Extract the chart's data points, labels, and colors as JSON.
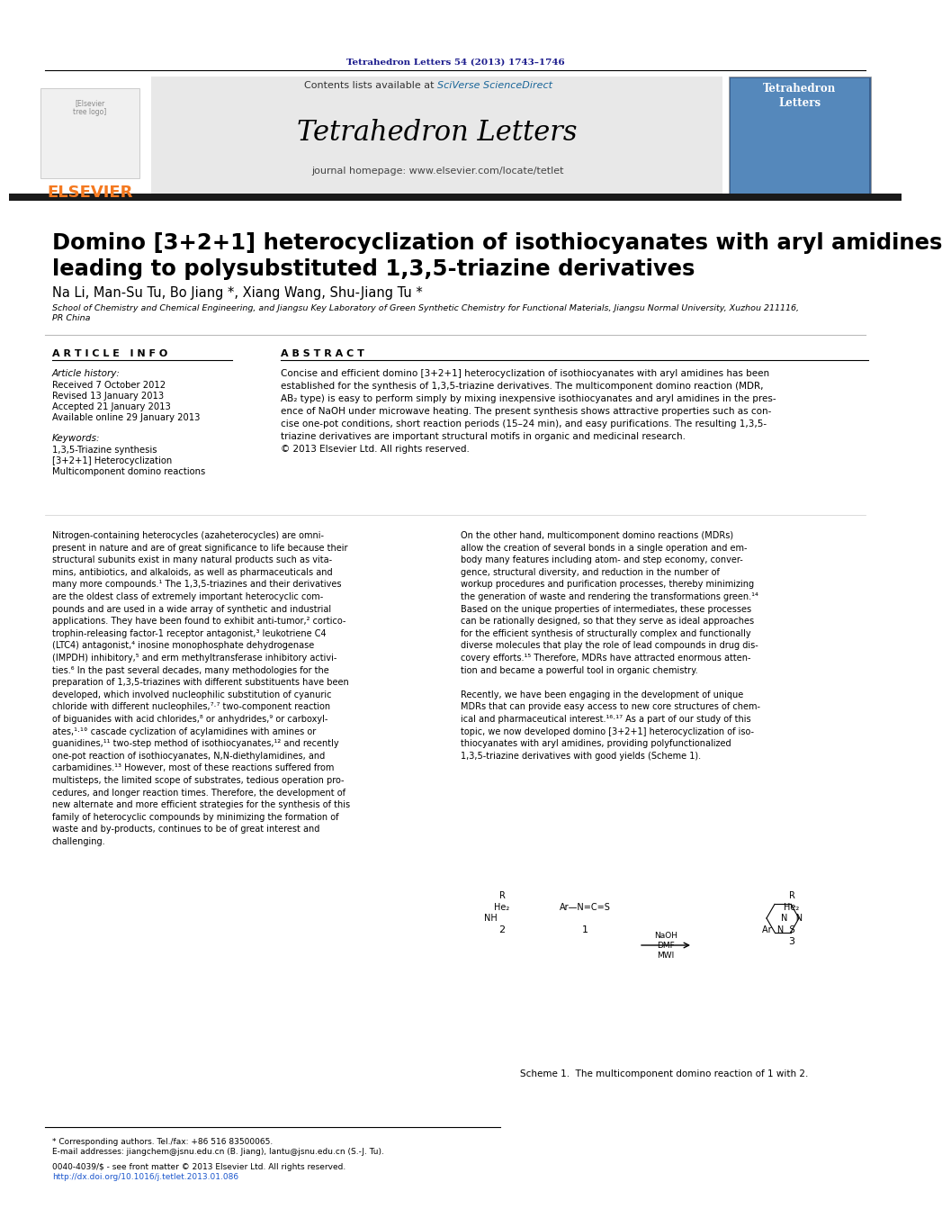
{
  "page_bg": "#ffffff",
  "header_journal_citation": "Tetrahedron Letters 54 (2013) 1743–1746",
  "header_citation_color": "#1a1a8c",
  "journal_name": "Tetrahedron Letters",
  "journal_homepage": "journal homepage: www.elsevier.com/locate/tetlet",
  "contents_line": "Contents lists available at ",
  "sciverse_text": "SciVerse ScienceDirect",
  "elsevier_color": "#f47920",
  "elsevier_text": "ELSEVIER",
  "header_bg": "#e8e8e8",
  "dark_bar_color": "#1a1a1a",
  "title": "Domino [3+2+1] heterocyclization of isothiocyanates with aryl amidines\nleading to polysubstituted 1,3,5-triazine derivatives",
  "authors": "Na Li, Man-Su Tu, Bo Jiang *, Xiang Wang, Shu-Jiang Tu *",
  "affiliation": "School of Chemistry and Chemical Engineering, and Jiangsu Key Laboratory of Green Synthetic Chemistry for Functional Materials, Jiangsu Normal University, Xuzhou 211116,\nPR China",
  "article_info_label": "A R T I C L E   I N F O",
  "abstract_label": "A B S T R A C T",
  "article_history_label": "Article history:",
  "received_label": "Received 7 October 2012",
  "revised_label": "Revised 13 January 2013",
  "accepted_label": "Accepted 21 January 2013",
  "online_label": "Available online 29 January 2013",
  "keywords_label": "Keywords:",
  "kw1": "1,3,5-Triazine synthesis",
  "kw2": "[3+2+1] Heterocyclization",
  "kw3": "Multicomponent domino reactions",
  "abstract_text": "Concise and efficient domino [3+2+1] heterocyclization of isothiocyanates with aryl amidines has been\nestablished for the synthesis of 1,3,5-triazine derivatives. The multicomponent domino reaction (MDR,\nAB₂ type) is easy to perform simply by mixing inexpensive isothiocyanates and aryl amidines in the pres-\nence of NaOH under microwave heating. The present synthesis shows attractive properties such as con-\ncise one-pot conditions, short reaction periods (15–24 min), and easy purifications. The resulting 1,3,5-\ntriazine derivatives are important structural motifs in organic and medicinal research.\n© 2013 Elsevier Ltd. All rights reserved.",
  "body_left_col": "Nitrogen-containing heterocycles (azaheterocycles) are omni-\npresent in nature and are of great significance to life because their\nstructural subunits exist in many natural products such as vita-\nmins, antibiotics, and alkaloids, as well as pharmaceuticals and\nmany more compounds.¹ The 1,3,5-triazines and their derivatives\nare the oldest class of extremely important heterocyclic com-\npounds and are used in a wide array of synthetic and industrial\napplications. They have been found to exhibit anti-tumor,² cortico-\ntrophin-releasing factor-1 receptor antagonist,³ leukotriene C4\n(LTC4) antagonist,⁴ inosine monophosphate dehydrogenase\n(IMPDH) inhibitory,⁵ and erm methyltransferase inhibitory activi-\nties.⁶ In the past several decades, many methodologies for the\npreparation of 1,3,5-triazines with different substituents have been\ndeveloped, which involved nucleophilic substitution of cyanuric\nchloride with different nucleophiles,⁷·⁷ two-component reaction\nof biguanides with acid chlorides,⁸ or anhydrides,⁹ or carboxyl-\nates,¹·¹° cascade cyclization of acylamidines with amines or\nguanidines,¹¹ two-step method of isothiocyanates,¹² and recently\none-pot reaction of isothiocyanates, N,N-diethylamidines, and\ncarbamidines.¹³ However, most of these reactions suffered from\nmultisteps, the limited scope of substrates, tedious operation pro-\ncedures, and longer reaction times. Therefore, the development of\nnew alternate and more efficient strategies for the synthesis of this\nfamily of heterocyclic compounds by minimizing the formation of\nwaste and by-products, continues to be of great interest and\nchallenging.",
  "body_right_col": "On the other hand, multicomponent domino reactions (MDRs)\nallow the creation of several bonds in a single operation and em-\nbody many features including atom- and step economy, conver-\ngence, structural diversity, and reduction in the number of\nworkup procedures and purification processes, thereby minimizing\nthe generation of waste and rendering the transformations green.¹⁴\nBased on the unique properties of intermediates, these processes\ncan be rationally designed, so that they serve as ideal approaches\nfor the efficient synthesis of structurally complex and functionally\ndiverse molecules that play the role of lead compounds in drug dis-\ncovery efforts.¹⁵ Therefore, MDRs have attracted enormous atten-\ntion and became a powerful tool in organic chemistry.\n\nRecently, we have been engaging in the development of unique\nMDRs that can provide easy access to new core structures of chem-\nical and pharmaceutical interest.¹⁶·¹⁷ As a part of our study of this\ntopic, we now developed domino [3+2+1] heterocyclization of iso-\nthiocyanates with aryl amidines, providing polyfunctionalized\n1,3,5-triazine derivatives with good yields (Scheme 1).",
  "scheme_caption": "Scheme 1.  The multicomponent domino reaction of 1 with 2.",
  "footer_star": "* Corresponding authors. Tel./fax: +86 516 83500065.",
  "footer_email": "E-mail addresses: jiangchem@jsnu.edu.cn (B. Jiang), lantu@jsnu.edu.cn (S.-J. Tu).",
  "footer_issn": "0040-4039/$ - see front matter © 2013 Elsevier Ltd. All rights reserved.",
  "footer_doi": "http://dx.doi.org/10.1016/j.tetlet.2013.01.086"
}
